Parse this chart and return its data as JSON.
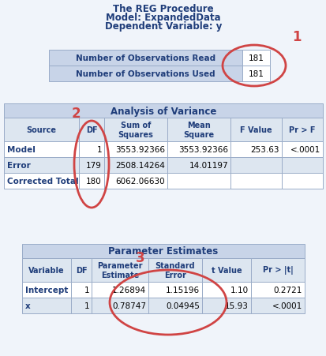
{
  "title_lines": [
    "The REG Procedure",
    "Model: ExpandedData",
    "Dependent Variable: y"
  ],
  "title_color": "#1f3d7a",
  "title_fontsize": 8.5,
  "bg_color": "#f0f4fa",
  "table_outer_bg": "#e8eef8",
  "obs_table": {
    "rows": [
      [
        "Number of Observations Read",
        "181"
      ],
      [
        "Number of Observations Used",
        "181"
      ]
    ],
    "header_bg": "#c8d4e8",
    "cell_bg": "#ffffff",
    "border_color": "#9aacc8",
    "text_color": "#1f3d7a",
    "value_color": "#000000"
  },
  "anova_table": {
    "title": "Analysis of Variance",
    "title_bg": "#c8d4e8",
    "header_bg": "#dde6f0",
    "row_bg": [
      "#ffffff",
      "#dde6f0",
      "#ffffff"
    ],
    "border_color": "#9aacc8",
    "header_color": "#1f3d7a",
    "data_color": "#000000",
    "bold_col_color": "#1f3d7a",
    "cols": [
      "Source",
      "DF",
      "Sum of\nSquares",
      "Mean\nSquare",
      "F Value",
      "Pr > F"
    ],
    "rows": [
      [
        "Model",
        "1",
        "3553.92366",
        "3553.92366",
        "253.63",
        "<.0001"
      ],
      [
        "Error",
        "179",
        "2508.14264",
        "14.01197",
        "",
        ""
      ],
      [
        "Corrected Total",
        "180",
        "6062.06630",
        "",
        "",
        ""
      ]
    ]
  },
  "param_table": {
    "title": "Parameter Estimates",
    "title_bg": "#c8d4e8",
    "header_bg": "#dde6f0",
    "row_bg": [
      "#ffffff",
      "#dde6f0"
    ],
    "border_color": "#9aacc8",
    "header_color": "#1f3d7a",
    "data_color": "#000000",
    "bold_col_color": "#1f3d7a",
    "cols": [
      "Variable",
      "DF",
      "Parameter\nEstimate",
      "Standard\nError",
      "t Value",
      "Pr > |t|"
    ],
    "rows": [
      [
        "Intercept",
        "1",
        "1.26894",
        "1.15196",
        "1.10",
        "0.2721"
      ],
      [
        "x",
        "1",
        "0.78747",
        "0.04945",
        "15.93",
        "<.0001"
      ]
    ]
  },
  "annotation_color": "#d04444",
  "annotation_fontsize": 12
}
